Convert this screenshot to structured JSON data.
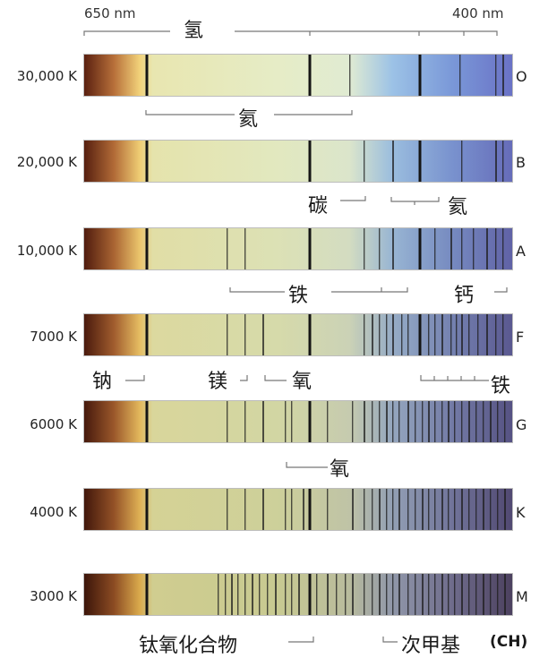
{
  "scale": {
    "left_label": "650 nm",
    "right_label": "400 nm"
  },
  "rows": [
    {
      "temp": "30,000 K",
      "cls": "O",
      "cool": 0.0
    },
    {
      "temp": "20,000 K",
      "cls": "B",
      "cool": 0.12
    },
    {
      "temp": "10,000 K",
      "cls": "A",
      "cool": 0.3
    },
    {
      "temp": "7000 K",
      "cls": "F",
      "cool": 0.5
    },
    {
      "temp": "6000 K",
      "cls": "G",
      "cool": 0.62
    },
    {
      "temp": "4000 K",
      "cls": "K",
      "cool": 0.78
    },
    {
      "temp": "3000 K",
      "cls": "M",
      "cool": 0.95
    }
  ],
  "labels": {
    "hydrogen": "氢",
    "helium_top": "氦",
    "carbon": "碳",
    "helium_b": "氦",
    "iron_a": "铁",
    "calcium": "钙",
    "sodium": "钠",
    "magnesium": "镁",
    "oxygen_f": "氧",
    "iron_f": "铁",
    "oxygen_g": "氧",
    "tio": "钛氧化合物",
    "ch": "次甲基",
    "ch_formula": "(CH)"
  }
}
